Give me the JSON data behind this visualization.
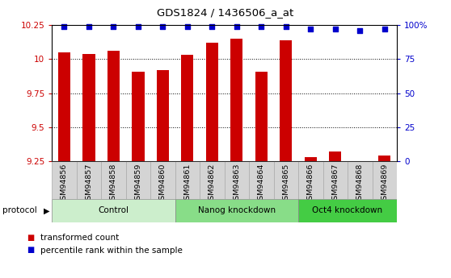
{
  "title": "GDS1824 / 1436506_a_at",
  "samples": [
    "GSM94856",
    "GSM94857",
    "GSM94858",
    "GSM94859",
    "GSM94860",
    "GSM94861",
    "GSM94862",
    "GSM94863",
    "GSM94864",
    "GSM94865",
    "GSM94866",
    "GSM94867",
    "GSM94868",
    "GSM94869"
  ],
  "transformed_count": [
    10.05,
    10.04,
    10.06,
    9.91,
    9.92,
    10.03,
    10.12,
    10.15,
    9.91,
    10.14,
    9.28,
    9.32,
    9.21,
    9.29
  ],
  "percentile_rank": [
    99,
    99,
    99,
    99,
    99,
    99,
    99,
    99,
    99,
    99,
    97,
    97,
    96,
    97
  ],
  "groups": [
    {
      "label": "Control",
      "start": 0,
      "end": 5,
      "color": "#cceecc"
    },
    {
      "label": "Nanog knockdown",
      "start": 5,
      "end": 10,
      "color": "#88dd88"
    },
    {
      "label": "Oct4 knockdown",
      "start": 10,
      "end": 14,
      "color": "#44cc44"
    }
  ],
  "ylim_left": [
    9.25,
    10.25
  ],
  "ylim_right": [
    0,
    100
  ],
  "yticks_left": [
    9.25,
    9.5,
    9.75,
    10.0,
    10.25
  ],
  "ytick_labels_left": [
    "9.25",
    "9.5",
    "9.75",
    "10",
    "10.25"
  ],
  "yticks_right": [
    0,
    25,
    50,
    75,
    100
  ],
  "ytick_labels_right": [
    "0",
    "25",
    "50",
    "75",
    "100%"
  ],
  "bar_color": "#cc0000",
  "dot_color": "#0000cc",
  "bar_width": 0.5,
  "cell_bg": "#d4d4d4",
  "cell_edge": "#aaaaaa",
  "group_edge": "#888888"
}
